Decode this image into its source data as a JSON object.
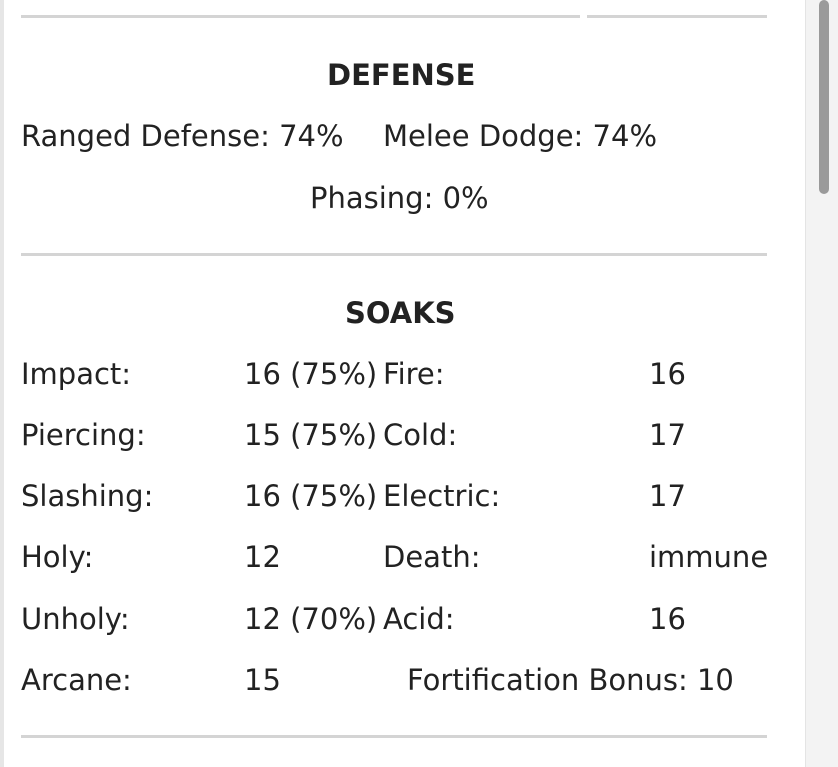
{
  "defense": {
    "heading": "DEFENSE",
    "ranged": "Ranged Defense: 74%",
    "melee": "Melee Dodge: 74%",
    "phasing": "Phasing: 0%"
  },
  "soaks": {
    "heading": "SOAKS",
    "left": [
      {
        "label": "Impact:",
        "value": "16 (75%)"
      },
      {
        "label": "Piercing:",
        "value": "15 (75%)"
      },
      {
        "label": "Slashing:",
        "value": "16 (75%)"
      },
      {
        "label": "Holy:",
        "value": "12"
      },
      {
        "label": "Unholy:",
        "value": "12 (70%)"
      },
      {
        "label": "Arcane:",
        "value": "15"
      }
    ],
    "right": [
      {
        "label": "Fire:",
        "value": "16"
      },
      {
        "label": "Cold:",
        "value": "17"
      },
      {
        "label": "Electric:",
        "value": "17"
      },
      {
        "label": "Death:",
        "value": "immune"
      },
      {
        "label": "Acid:",
        "value": "16"
      }
    ],
    "fortification": "Fortification Bonus: 10"
  },
  "colors": {
    "text": "#222222",
    "divider": "#d4d4d4",
    "scrollbar_thumb": "#9a9a9a"
  }
}
